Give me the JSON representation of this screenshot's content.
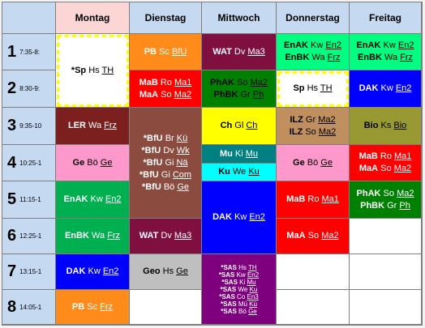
{
  "days": [
    "Montag",
    "Dienstag",
    "Mittwoch",
    "Donnerstag",
    "Freitag"
  ],
  "periods": [
    {
      "num": "1",
      "time": "7:35-8:"
    },
    {
      "num": "2",
      "time": "8:30-9:"
    },
    {
      "num": "3",
      "time": "9:35-10"
    },
    {
      "num": "4",
      "time": "10:25-1"
    },
    {
      "num": "5",
      "time": "11:15-1"
    },
    {
      "num": "6",
      "time": "12:25-1"
    },
    {
      "num": "7",
      "time": "13:15-1"
    },
    {
      "num": "8",
      "time": "14:05-1"
    }
  ],
  "colors": {
    "header": "#c5d9f1",
    "header_montag": "#fcd5d5",
    "sport_border": "#ffff00"
  },
  "lessons": [
    {
      "id": "mo-12",
      "day": 0,
      "p0": 0,
      "p1": 1,
      "bg": "#ffffff",
      "dashed": true,
      "white": false,
      "lines": [
        {
          "subj": "*Sp",
          "teacher": "Hs",
          "room": "TH"
        }
      ]
    },
    {
      "id": "mo-3",
      "day": 0,
      "p0": 2,
      "p1": 2,
      "bg": "#7b1f1f",
      "white": true,
      "lines": [
        {
          "subj": "LER",
          "teacher": "Wa",
          "room": "Frz"
        }
      ]
    },
    {
      "id": "mo-4",
      "day": 0,
      "p0": 3,
      "p1": 3,
      "bg": "#ff99cc",
      "white": false,
      "lines": [
        {
          "subj": "Ge",
          "teacher": "Bö",
          "room": "Ge"
        }
      ]
    },
    {
      "id": "mo-5",
      "day": 0,
      "p0": 4,
      "p1": 4,
      "bg": "#00b050",
      "white": true,
      "lines": [
        {
          "subj": "EnAK",
          "teacher": "Kw",
          "room": "En2"
        }
      ]
    },
    {
      "id": "mo-6",
      "day": 0,
      "p0": 5,
      "p1": 5,
      "bg": "#00b050",
      "white": true,
      "lines": [
        {
          "subj": "EnBK",
          "teacher": "Wa",
          "room": "Frz"
        }
      ]
    },
    {
      "id": "mo-7",
      "day": 0,
      "p0": 6,
      "p1": 6,
      "bg": "#0000ff",
      "white": true,
      "lines": [
        {
          "subj": "DAK",
          "teacher": "Kw",
          "room": "En2"
        }
      ]
    },
    {
      "id": "mo-8",
      "day": 0,
      "p0": 7,
      "p1": 7,
      "bg": "#ff8c1a",
      "white": true,
      "lines": [
        {
          "subj": "PB",
          "teacher": "Sc",
          "room": "Frz"
        }
      ]
    },
    {
      "id": "di-1",
      "day": 1,
      "p0": 0,
      "p1": 0,
      "bg": "#ff8c1a",
      "white": true,
      "lines": [
        {
          "subj": "PB",
          "teacher": "Sc",
          "room": "BfU"
        }
      ]
    },
    {
      "id": "di-2",
      "day": 1,
      "p0": 1,
      "p1": 1,
      "bg": "#ff0000",
      "white": true,
      "lines": [
        {
          "subj": "MaB",
          "teacher": "Ro",
          "room": "Ma1"
        },
        {
          "subj": "MaA",
          "teacher": "So",
          "room": "Ma2"
        }
      ]
    },
    {
      "id": "di-36",
      "day": 1,
      "p0": 2,
      "p1": 4,
      "bg": "#8b4c3f",
      "white": true,
      "lines": [
        {
          "subj": "*BfU",
          "teacher": "Br",
          "room": "Kü"
        },
        {
          "subj": "*BfU",
          "teacher": "Dv",
          "room": "Wk"
        },
        {
          "subj": "*BfU",
          "teacher": "Gi",
          "room": "Nä"
        },
        {
          "subj": "*BfU",
          "teacher": "Gi",
          "room": "Com"
        },
        {
          "subj": "*BfU",
          "teacher": "Bö",
          "room": "Ge"
        }
      ]
    },
    {
      "id": "di-6",
      "day": 1,
      "p0": 5,
      "p1": 5,
      "bg": "#7f0f3f",
      "white": true,
      "lines": [
        {
          "subj": "WAT",
          "teacher": "Dv",
          "room": "Ma3"
        }
      ]
    },
    {
      "id": "di-7",
      "day": 1,
      "p0": 6,
      "p1": 6,
      "bg": "#bfbfbf",
      "white": false,
      "lines": [
        {
          "subj": "Geo",
          "teacher": "Hs",
          "room": "Ge"
        }
      ]
    },
    {
      "id": "mi-1",
      "day": 2,
      "p0": 0,
      "p1": 0,
      "bg": "#7f0f3f",
      "white": true,
      "lines": [
        {
          "subj": "WAT",
          "teacher": "Dv",
          "room": "Ma3"
        }
      ]
    },
    {
      "id": "mi-2",
      "day": 2,
      "p0": 1,
      "p1": 1,
      "bg": "#008000",
      "white": false,
      "lines": [
        {
          "subj": "PhAK",
          "teacher": "So",
          "room": "Ma2"
        },
        {
          "subj": "PhBK",
          "teacher": "Gr",
          "room": "Ph"
        }
      ]
    },
    {
      "id": "mi-3",
      "day": 2,
      "p0": 2,
      "p1": 2,
      "bg": "#ffff00",
      "white": false,
      "lines": [
        {
          "subj": "Ch",
          "teacher": "Gl",
          "room": "Ch"
        }
      ]
    },
    {
      "id": "mi-4a",
      "day": 2,
      "p0": 3,
      "p1": 3,
      "half": "top",
      "bg": "#008080",
      "white": true,
      "lines": [
        {
          "subj": "Mu",
          "teacher": "Ki",
          "room": "Mu"
        }
      ]
    },
    {
      "id": "mi-4b",
      "day": 2,
      "p0": 3,
      "p1": 3,
      "half": "bottom",
      "bg": "#00ffff",
      "white": false,
      "lines": [
        {
          "subj": "Ku",
          "teacher": "We",
          "room": "Ku"
        }
      ]
    },
    {
      "id": "mi-56",
      "day": 2,
      "p0": 4,
      "p1": 5,
      "bg": "#0000ff",
      "white": true,
      "lines": [
        {
          "subj": "DAK",
          "teacher": "Kw",
          "room": "En2"
        }
      ]
    },
    {
      "id": "mi-78",
      "day": 2,
      "p0": 6,
      "p1": 7,
      "bg": "#7f007f",
      "white": true,
      "small": true,
      "lines": [
        {
          "subj": "*SAS",
          "teacher": "Hs",
          "room": "TH"
        },
        {
          "subj": "*SAS",
          "teacher": "Kw",
          "room": "En2"
        },
        {
          "subj": "*SAS",
          "teacher": "Ki",
          "room": "Mu"
        },
        {
          "subj": "*SAS",
          "teacher": "We",
          "room": "Ku"
        },
        {
          "subj": "*SAS",
          "teacher": "Co",
          "room": "En3"
        },
        {
          "subj": "*SAS",
          "teacher": "Mü",
          "room": "Kü"
        },
        {
          "subj": "*SAS",
          "teacher": "Bö",
          "room": "Ge"
        }
      ]
    },
    {
      "id": "do-1",
      "day": 3,
      "p0": 0,
      "p1": 0,
      "bg": "#00ff80",
      "white": false,
      "lines": [
        {
          "subj": "EnAK",
          "teacher": "Kw",
          "room": "En2"
        },
        {
          "subj": "EnBK",
          "teacher": "Wa",
          "room": "Frz"
        }
      ]
    },
    {
      "id": "do-2",
      "day": 3,
      "p0": 1,
      "p1": 1,
      "bg": "#ffffff",
      "dashed": true,
      "white": false,
      "lines": [
        {
          "subj": "Sp",
          "teacher": "Hs",
          "room": "TH"
        }
      ]
    },
    {
      "id": "do-3",
      "day": 3,
      "p0": 2,
      "p1": 2,
      "bg": "#bf8f5f",
      "white": false,
      "lines": [
        {
          "subj": "ILZ",
          "teacher": "Gr",
          "room": "Ma2"
        },
        {
          "subj": "ILZ",
          "teacher": "So",
          "room": "Ma2"
        }
      ]
    },
    {
      "id": "do-4",
      "day": 3,
      "p0": 3,
      "p1": 3,
      "bg": "#ff99cc",
      "white": false,
      "lines": [
        {
          "subj": "Ge",
          "teacher": "Bö",
          "room": "Ge"
        }
      ]
    },
    {
      "id": "do-5",
      "day": 3,
      "p0": 4,
      "p1": 4,
      "bg": "#ff0000",
      "white": true,
      "lines": [
        {
          "subj": "MaB",
          "teacher": "Ro",
          "room": "Ma1"
        }
      ]
    },
    {
      "id": "do-6",
      "day": 3,
      "p0": 5,
      "p1": 5,
      "bg": "#ff0000",
      "white": true,
      "lines": [
        {
          "subj": "MaA",
          "teacher": "So",
          "room": "Ma2"
        }
      ]
    },
    {
      "id": "fr-1",
      "day": 4,
      "p0": 0,
      "p1": 0,
      "bg": "#00ff80",
      "white": false,
      "lines": [
        {
          "subj": "EnAK",
          "teacher": "Kw",
          "room": "En2"
        },
        {
          "subj": "EnBK",
          "teacher": "Wa",
          "room": "Frz"
        }
      ]
    },
    {
      "id": "fr-2",
      "day": 4,
      "p0": 1,
      "p1": 1,
      "bg": "#0000ff",
      "white": true,
      "lines": [
        {
          "subj": "DAK",
          "teacher": "Kw",
          "room": "En2"
        }
      ]
    },
    {
      "id": "fr-3",
      "day": 4,
      "p0": 2,
      "p1": 2,
      "bg": "#999933",
      "white": false,
      "lines": [
        {
          "subj": "Bio",
          "teacher": "Ks",
          "room": "Bio"
        }
      ]
    },
    {
      "id": "fr-4",
      "day": 4,
      "p0": 3,
      "p1": 3,
      "bg": "#ff0000",
      "white": true,
      "lines": [
        {
          "subj": "MaB",
          "teacher": "Ro",
          "room": "Ma1"
        },
        {
          "subj": "MaA",
          "teacher": "So",
          "room": "Ma2"
        }
      ]
    },
    {
      "id": "fr-5",
      "day": 4,
      "p0": 4,
      "p1": 4,
      "bg": "#008000",
      "white": true,
      "lines": [
        {
          "subj": "PhAK",
          "teacher": "So",
          "room": "Ma2"
        },
        {
          "subj": "PhBK",
          "teacher": "Gr",
          "room": "Ph"
        }
      ]
    }
  ]
}
